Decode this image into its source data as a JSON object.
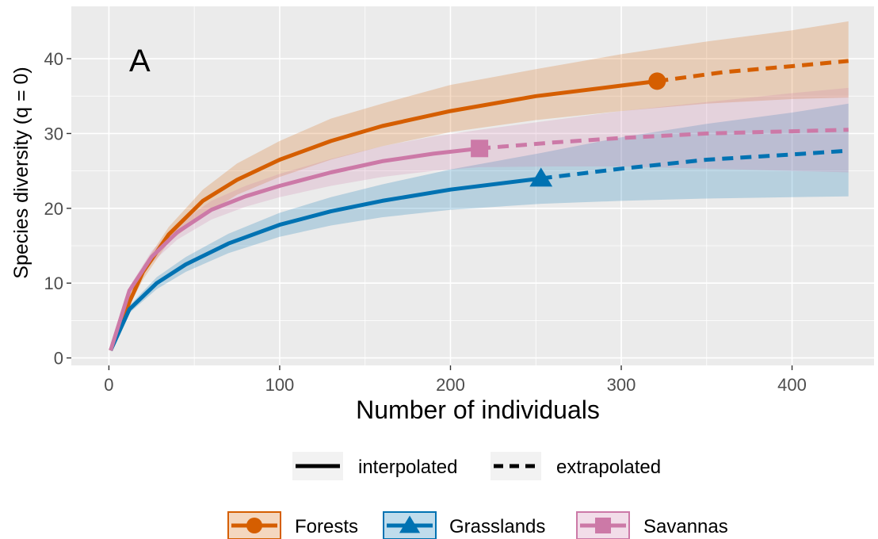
{
  "chart_data": {
    "type": "line",
    "panel_label": "A",
    "xlabel": "Number of individuals",
    "ylabel": "Species diversity (q = 0)",
    "xlim": [
      -22,
      448
    ],
    "ylim": [
      -1,
      47
    ],
    "x_ticks": [
      0,
      100,
      200,
      300,
      400
    ],
    "y_ticks": [
      0,
      10,
      20,
      30,
      40
    ],
    "grid": true,
    "line_type_legend": [
      {
        "label": "interpolated",
        "style": "solid"
      },
      {
        "label": "extrapolated",
        "style": "dashed"
      }
    ],
    "series": [
      {
        "name": "Forests",
        "color": "#D55E00",
        "marker": "circle",
        "observed": {
          "x": 321,
          "y": 37.0
        },
        "interpolated": [
          [
            1,
            1
          ],
          [
            12,
            7.5
          ],
          [
            20,
            11.5
          ],
          [
            35,
            16.5
          ],
          [
            55,
            21
          ],
          [
            75,
            23.8
          ],
          [
            100,
            26.5
          ],
          [
            130,
            29
          ],
          [
            160,
            31
          ],
          [
            200,
            33
          ],
          [
            250,
            35
          ],
          [
            300,
            36.4
          ],
          [
            321,
            37
          ]
        ],
        "extrapolated": [
          [
            321,
            37
          ],
          [
            360,
            38.2
          ],
          [
            400,
            39
          ],
          [
            433,
            39.7
          ]
        ],
        "lower": [
          [
            1,
            1
          ],
          [
            12,
            7.0
          ],
          [
            20,
            10.5
          ],
          [
            35,
            15.5
          ],
          [
            55,
            19.0
          ],
          [
            75,
            21.8
          ],
          [
            100,
            24.2
          ],
          [
            130,
            26.5
          ],
          [
            160,
            28.3
          ],
          [
            200,
            30.2
          ],
          [
            250,
            31.8
          ],
          [
            300,
            33.0
          ],
          [
            350,
            34.0
          ],
          [
            400,
            34.6
          ],
          [
            433,
            34.8
          ]
        ],
        "upper": [
          [
            1,
            1
          ],
          [
            12,
            8.2
          ],
          [
            20,
            12.3
          ],
          [
            35,
            17.5
          ],
          [
            55,
            22.5
          ],
          [
            75,
            26.0
          ],
          [
            100,
            29.0
          ],
          [
            130,
            32.0
          ],
          [
            160,
            34.0
          ],
          [
            200,
            36.5
          ],
          [
            250,
            38.6
          ],
          [
            300,
            40.6
          ],
          [
            350,
            42.3
          ],
          [
            400,
            43.8
          ],
          [
            433,
            45.0
          ]
        ]
      },
      {
        "name": "Grasslands",
        "color": "#0072B2",
        "marker": "triangle",
        "observed": {
          "x": 253,
          "y": 24.0
        },
        "interpolated": [
          [
            1,
            1
          ],
          [
            12,
            6.5
          ],
          [
            28,
            10
          ],
          [
            45,
            12.5
          ],
          [
            70,
            15.3
          ],
          [
            100,
            17.8
          ],
          [
            130,
            19.6
          ],
          [
            160,
            21
          ],
          [
            200,
            22.5
          ],
          [
            253,
            24
          ]
        ],
        "extrapolated": [
          [
            253,
            24
          ],
          [
            300,
            25.3
          ],
          [
            350,
            26.5
          ],
          [
            400,
            27.2
          ],
          [
            433,
            27.7
          ]
        ],
        "lower": [
          [
            1,
            1
          ],
          [
            12,
            6.0
          ],
          [
            28,
            9.2
          ],
          [
            45,
            11.5
          ],
          [
            70,
            14.0
          ],
          [
            100,
            16.2
          ],
          [
            130,
            17.7
          ],
          [
            160,
            18.8
          ],
          [
            200,
            19.8
          ],
          [
            253,
            20.6
          ],
          [
            300,
            21.0
          ],
          [
            350,
            21.3
          ],
          [
            400,
            21.5
          ],
          [
            433,
            21.6
          ]
        ],
        "upper": [
          [
            1,
            1
          ],
          [
            12,
            7.0
          ],
          [
            28,
            10.8
          ],
          [
            45,
            13.5
          ],
          [
            70,
            16.6
          ],
          [
            100,
            19.4
          ],
          [
            130,
            21.5
          ],
          [
            160,
            23.2
          ],
          [
            200,
            25.2
          ],
          [
            253,
            27.4
          ],
          [
            300,
            29.5
          ],
          [
            350,
            31.3
          ],
          [
            400,
            32.8
          ],
          [
            433,
            34.0
          ]
        ]
      },
      {
        "name": "Savannas",
        "color": "#CC79A7",
        "marker": "square",
        "observed": {
          "x": 217,
          "y": 28.0
        },
        "interpolated": [
          [
            1,
            1
          ],
          [
            12,
            9
          ],
          [
            25,
            13.5
          ],
          [
            40,
            16.8
          ],
          [
            60,
            19.8
          ],
          [
            80,
            21.6
          ],
          [
            100,
            23
          ],
          [
            130,
            24.8
          ],
          [
            160,
            26.3
          ],
          [
            190,
            27.3
          ],
          [
            217,
            28
          ]
        ],
        "extrapolated": [
          [
            217,
            28
          ],
          [
            260,
            28.8
          ],
          [
            300,
            29.4
          ],
          [
            350,
            30
          ],
          [
            400,
            30.3
          ],
          [
            433,
            30.5
          ]
        ],
        "lower": [
          [
            1,
            1
          ],
          [
            12,
            8.5
          ],
          [
            25,
            12.7
          ],
          [
            40,
            15.8
          ],
          [
            60,
            18.5
          ],
          [
            80,
            20.2
          ],
          [
            100,
            21.5
          ],
          [
            130,
            23.0
          ],
          [
            160,
            24.2
          ],
          [
            190,
            25.0
          ],
          [
            217,
            25.5
          ],
          [
            260,
            25.6
          ],
          [
            300,
            25.6
          ],
          [
            350,
            25.3
          ],
          [
            400,
            25.0
          ],
          [
            433,
            24.8
          ]
        ],
        "upper": [
          [
            1,
            1
          ],
          [
            12,
            9.5
          ],
          [
            25,
            14.3
          ],
          [
            40,
            17.8
          ],
          [
            60,
            21.0
          ],
          [
            80,
            23.0
          ],
          [
            100,
            24.6
          ],
          [
            130,
            26.6
          ],
          [
            160,
            28.3
          ],
          [
            190,
            29.6
          ],
          [
            217,
            30.5
          ],
          [
            260,
            31.8
          ],
          [
            300,
            33.0
          ],
          [
            350,
            34.2
          ],
          [
            400,
            35.4
          ],
          [
            433,
            36.1
          ]
        ]
      }
    ]
  }
}
